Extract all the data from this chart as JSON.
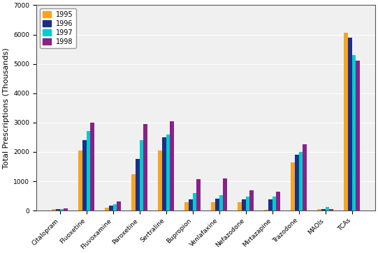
{
  "categories": [
    "Citalopram",
    "Fluoxetine",
    "Fluvoxamine",
    "Paroxetine",
    "Sertraline",
    "Bupropion",
    "Venlafaxine",
    "Nefazodone",
    "Mirtazapine",
    "Trazodone",
    "MAOIs",
    "TCAs"
  ],
  "years": [
    "1995",
    "1996",
    "1997",
    "1998"
  ],
  "values": {
    "1995": [
      50,
      2050,
      100,
      1250,
      2050,
      300,
      280,
      280,
      30,
      1650,
      50,
      6050
    ],
    "1996": [
      50,
      2400,
      175,
      1750,
      2500,
      380,
      400,
      380,
      380,
      1900,
      50,
      5900
    ],
    "1997": [
      50,
      2700,
      220,
      2400,
      2600,
      600,
      530,
      480,
      480,
      2000,
      130,
      5300
    ],
    "1998": [
      75,
      3000,
      320,
      2950,
      3050,
      1080,
      1100,
      700,
      650,
      2250,
      50,
      5100
    ]
  },
  "colors": {
    "1995": "#F5A523",
    "1996": "#1B2F8A",
    "1997": "#00CCCC",
    "1998": "#882288"
  },
  "ylabel": "Total Prescriptions (Thousands)",
  "ylim": [
    0,
    7000
  ],
  "yticks": [
    0,
    1000,
    2000,
    3000,
    4000,
    5000,
    6000,
    7000
  ],
  "bg_color": "#FFFFFF",
  "plot_bg_color": "#F0F0F0",
  "grid_color": "#FFFFFF",
  "bar_width": 0.15,
  "legend_fontsize": 7,
  "tick_fontsize": 6.5,
  "ylabel_fontsize": 8
}
